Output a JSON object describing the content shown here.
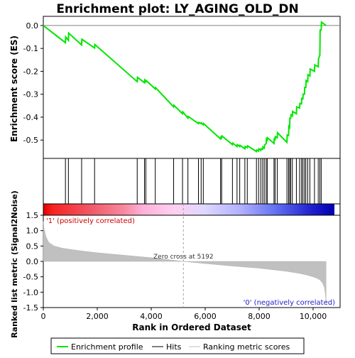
{
  "chart_data": {
    "type": "line",
    "title": "Enrichment plot: LY_AGING_OLD_DN",
    "es_panel": {
      "ylabel": "Enrichment score (ES)",
      "ylim": [
        -0.58,
        0.04
      ],
      "yticks": [
        0.0,
        -0.1,
        -0.2,
        -0.3,
        -0.4,
        -0.5
      ],
      "ytick_labels": [
        "0.0",
        "-0.1",
        "-0.2",
        "-0.3",
        "-0.4",
        "-0.5"
      ],
      "curve_color": "#00e600",
      "series": [
        {
          "name": "Enrichment profile",
          "x": [
            0,
            820,
            830,
            930,
            940,
            1420,
            1430,
            1900,
            1910,
            3480,
            3490,
            3750,
            3760,
            3800,
            3810,
            4150,
            4160,
            4830,
            4840,
            5160,
            5170,
            5360,
            5370,
            5750,
            5760,
            5850,
            5860,
            5930,
            5940,
            6570,
            6580,
            6610,
            6620,
            7010,
            7020,
            7180,
            7190,
            7280,
            7290,
            7470,
            7480,
            7560,
            7570,
            7900,
            7910,
            7980,
            7990,
            8060,
            8070,
            8130,
            8140,
            8190,
            8200,
            8260,
            8270,
            8300,
            8310,
            8550,
            8560,
            8590,
            8600,
            8670,
            8680,
            9030,
            9040,
            9090,
            9100,
            9130,
            9140,
            9170,
            9180,
            9230,
            9240,
            9380,
            9390,
            9500,
            9510,
            9570,
            9580,
            9620,
            9630,
            9680,
            9690,
            9730,
            9740,
            9800,
            9810,
            9880,
            9890,
            10050,
            10060,
            10190,
            10200,
            10250,
            10260,
            10300,
            10310,
            10480
          ],
          "y": [
            0.0,
            -0.075,
            -0.05,
            -0.065,
            -0.033,
            -0.085,
            -0.06,
            -0.098,
            -0.083,
            -0.245,
            -0.226,
            -0.25,
            -0.238,
            -0.245,
            -0.24,
            -0.277,
            -0.271,
            -0.355,
            -0.348,
            -0.385,
            -0.377,
            -0.404,
            -0.397,
            -0.428,
            -0.423,
            -0.428,
            -0.425,
            -0.433,
            -0.428,
            -0.495,
            -0.487,
            -0.49,
            -0.482,
            -0.52,
            -0.513,
            -0.528,
            -0.52,
            -0.528,
            -0.523,
            -0.538,
            -0.528,
            -0.533,
            -0.525,
            -0.55,
            -0.543,
            -0.548,
            -0.538,
            -0.545,
            -0.538,
            -0.54,
            -0.53,
            -0.535,
            -0.522,
            -0.515,
            -0.495,
            -0.5,
            -0.49,
            -0.515,
            -0.495,
            -0.498,
            -0.485,
            -0.49,
            -0.468,
            -0.51,
            -0.478,
            -0.48,
            -0.44,
            -0.445,
            -0.405,
            -0.405,
            -0.39,
            -0.395,
            -0.375,
            -0.385,
            -0.355,
            -0.36,
            -0.34,
            -0.342,
            -0.318,
            -0.32,
            -0.3,
            -0.3,
            -0.27,
            -0.27,
            -0.24,
            -0.245,
            -0.215,
            -0.22,
            -0.19,
            -0.2,
            -0.172,
            -0.18,
            -0.145,
            -0.13,
            -0.02,
            -0.02,
            0.015,
            0.0
          ]
        }
      ]
    },
    "hits_panel": {
      "series_name": "Hits",
      "hit_ranks": [
        820,
        930,
        1420,
        1900,
        3480,
        3750,
        3800,
        4150,
        4830,
        5160,
        5360,
        5750,
        5850,
        5930,
        6570,
        6610,
        7010,
        7180,
        7280,
        7470,
        7560,
        7900,
        7980,
        8060,
        8130,
        8190,
        8260,
        8300,
        8550,
        8590,
        8670,
        9030,
        9090,
        9130,
        9170,
        9230,
        9380,
        9500,
        9570,
        9620,
        9680,
        9730,
        9800,
        9880,
        10050,
        10190,
        10250,
        10300
      ]
    },
    "ranking_panel": {
      "ylabel": "Ranked list metric (Signal2Noise)",
      "xlabel": "Rank in Ordered Dataset",
      "series_name": "Ranking metric scores",
      "xlim": [
        0,
        11000
      ],
      "xticks": [
        0,
        2000,
        4000,
        6000,
        8000,
        10000
      ],
      "xtick_labels": [
        "0",
        "2,000",
        "4,000",
        "6,000",
        "8,000",
        "10,000"
      ],
      "ylim": [
        -1.5,
        1.5
      ],
      "yticks": [
        1.5,
        1.0,
        0.5,
        0.0,
        -0.5,
        -1.0,
        -1.5
      ],
      "ytick_labels": [
        "1.5",
        "1.0",
        "0.5",
        "0.0",
        "-0.5",
        "-1.0",
        "-1.5"
      ],
      "metric_x": [
        0,
        30,
        100,
        200,
        400,
        700,
        1000,
        1500,
        2000,
        3000,
        4000,
        5192,
        6000,
        7000,
        8000,
        8500,
        9000,
        9500,
        9800,
        10000,
        10150,
        10250,
        10350,
        10420,
        10460,
        10480
      ],
      "metric_y": [
        1.3,
        1.05,
        0.8,
        0.62,
        0.5,
        0.43,
        0.39,
        0.33,
        0.28,
        0.2,
        0.12,
        0.0,
        -0.07,
        -0.15,
        -0.22,
        -0.27,
        -0.32,
        -0.39,
        -0.45,
        -0.5,
        -0.55,
        -0.6,
        -0.7,
        -0.85,
        -1.1,
        -1.4
      ],
      "zero_cross_rank": 5192,
      "zero_cross_label": "Zero cross at 5192",
      "pos_label": "'1' (positively correlated)",
      "neg_label": "'0' (negatively correlated)",
      "pos_label_color": "#cc0000",
      "neg_label_color": "#2222cc"
    },
    "legend": {
      "placement": "bottom",
      "items": [
        {
          "label": "Enrichment profile",
          "color": "#00e600"
        },
        {
          "label": "Hits",
          "color": "#000000"
        },
        {
          "label": "Ranking metric scores",
          "color": "#c0c0c0"
        }
      ]
    },
    "n_genes": 10480
  }
}
